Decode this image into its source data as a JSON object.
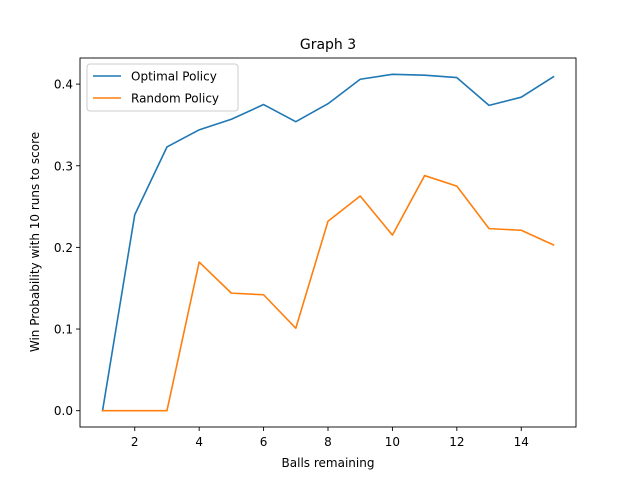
{
  "chart_data": {
    "type": "line",
    "title": "Graph 3",
    "xlabel": "Balls remaining",
    "ylabel": "Win Probability with 10 runs to score",
    "x": [
      1,
      2,
      3,
      4,
      5,
      6,
      7,
      8,
      9,
      10,
      11,
      12,
      13,
      14,
      15
    ],
    "xlim": [
      0.3,
      15.7
    ],
    "ylim": [
      -0.02,
      0.432
    ],
    "xticks": [
      2,
      4,
      6,
      8,
      10,
      12,
      14
    ],
    "yticks": [
      0.0,
      0.1,
      0.2,
      0.3,
      0.4
    ],
    "xtick_labels": [
      "2",
      "4",
      "6",
      "8",
      "10",
      "12",
      "14"
    ],
    "ytick_labels": [
      "0.0",
      "0.1",
      "0.2",
      "0.3",
      "0.4"
    ],
    "grid": false,
    "legend_position": "top-left",
    "series": [
      {
        "name": "Optimal Policy",
        "color": "#1f77b4",
        "values": [
          0.0,
          0.24,
          0.323,
          0.344,
          0.357,
          0.375,
          0.354,
          0.376,
          0.406,
          0.412,
          0.411,
          0.408,
          0.374,
          0.384,
          0.409
        ]
      },
      {
        "name": "Random Policy",
        "color": "#ff7f0e",
        "values": [
          0.0,
          0.0,
          0.0,
          0.182,
          0.144,
          0.142,
          0.101,
          0.232,
          0.263,
          0.215,
          0.288,
          0.275,
          0.223,
          0.221,
          0.203
        ]
      }
    ]
  }
}
